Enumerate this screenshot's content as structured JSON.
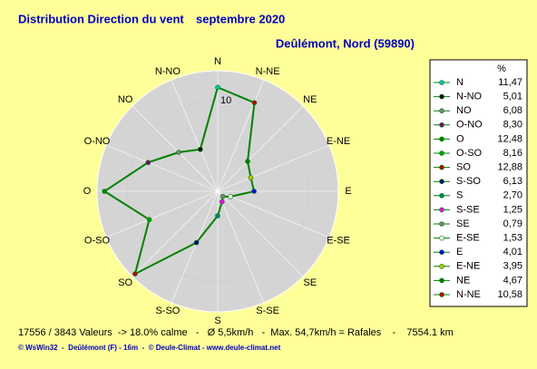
{
  "chart_data": {
    "type": "radar",
    "title": "Distribution Direction du vent",
    "subtitle": "septembre 2020",
    "location": "Deûlémont, Nord (59890)",
    "legend_header": "%",
    "categories": [
      "N",
      "N-NO",
      "NO",
      "O-NO",
      "O",
      "O-SO",
      "SO",
      "S-SO",
      "S",
      "S-SE",
      "SE",
      "E-SE",
      "E",
      "E-NE",
      "NE",
      "N-NE"
    ],
    "values": [
      11.47,
      5.01,
      6.08,
      8.3,
      12.48,
      8.16,
      12.88,
      6.13,
      2.7,
      1.25,
      0.79,
      1.53,
      4.01,
      3.95,
      4.67,
      10.58
    ],
    "value_labels": [
      "11,47",
      "5,01",
      "6,08",
      "8,30",
      "12,48",
      "8,16",
      "12,88",
      "6,13",
      "2,70",
      "1,25",
      "0,79",
      "1,53",
      "4,01",
      "3,95",
      "4,67",
      "10,58"
    ],
    "colors": [
      "#00c0c0",
      "#000000",
      "#808080",
      "#800080",
      "#008000",
      "#00a000",
      "#c00000",
      "#000080",
      "#008080",
      "#ff00ff",
      "#808080",
      "#ffffff",
      "#0000ff",
      "#c0c000",
      "#008000",
      "#c00000"
    ],
    "line_color": "#008000",
    "rlim": [
      0,
      13.3
    ],
    "rticks": [
      10
    ],
    "footer": "17556 / 3843 Valeurs  -> 18.0% calme   -   Ø 5,5km/h   -  Max. 54,7km/h = Rafales    -    7554.1 km",
    "credits": "© WsWin32  -  Deûlémont (F) - 16m  -  © Deule-Climat - www.deule-climat.net"
  }
}
